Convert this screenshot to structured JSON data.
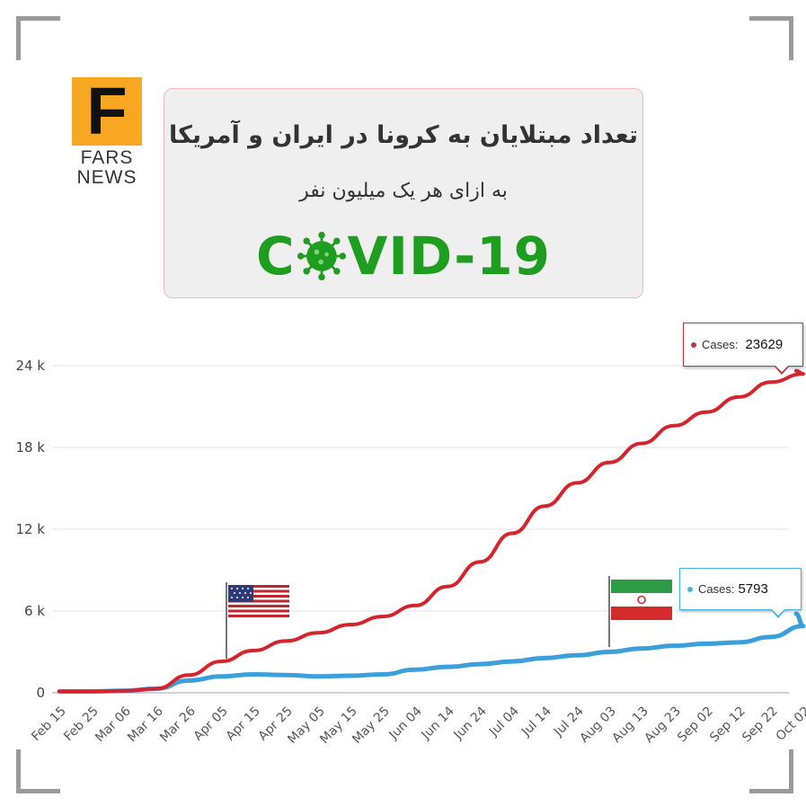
{
  "branding": {
    "logo_letter": "F",
    "logo_line1": "FARS",
    "logo_line2": "NEWS"
  },
  "header": {
    "title": "تعداد مبتلایان به کرونا در ایران و آمریکا",
    "subtitle": "به ازای هر یک میلیون نفر",
    "covid_left": "C",
    "covid_right": "VID-19"
  },
  "colors": {
    "us": "#d6242d",
    "iran": "#3b9fdc",
    "accent": "#1e9e1e",
    "logo_bg": "#f7a721"
  },
  "icons": {
    "covid": "virus-icon",
    "us_flag": "us-flag-icon",
    "iran_flag": "iran-flag-icon"
  },
  "tooltips": {
    "us": {
      "label": "Cases:",
      "value": "23629"
    },
    "iran": {
      "label": "Cases:",
      "value": "5793"
    }
  },
  "chart_data": {
    "type": "line",
    "y_tick_labels": [
      "0",
      "6 k",
      "12 k",
      "18 k",
      "24 k"
    ],
    "y_tick_values": [
      0,
      6000,
      12000,
      18000,
      24000
    ],
    "ylim": [
      0,
      24000
    ],
    "x_tick_labels": [
      "Feb 15",
      "Feb 25",
      "Mar 06",
      "Mar 16",
      "Mar 26",
      "Apr 05",
      "Apr 15",
      "Apr 25",
      "May 05",
      "May 15",
      "May 25",
      "Jun 04",
      "Jun 14",
      "Jun 24",
      "Jul 04",
      "Jul 14",
      "Jul 24",
      "Aug 03",
      "Aug 13",
      "Aug 23",
      "Sep 02",
      "Sep 12",
      "Sep 22",
      "Oct 02"
    ],
    "x": [
      "Feb 15",
      "Feb 25",
      "Mar 06",
      "Mar 16",
      "Mar 26",
      "Apr 05",
      "Apr 15",
      "Apr 25",
      "May 05",
      "May 15",
      "May 25",
      "Jun 04",
      "Jun 14",
      "Jun 24",
      "Jul 04",
      "Jul 14",
      "Jul 24",
      "Aug 03",
      "Aug 13",
      "Aug 23",
      "Sep 02",
      "Sep 12",
      "Sep 22",
      "Oct 02",
      "Oct 08"
    ],
    "series": [
      {
        "key": "us",
        "values": [
          100,
          100,
          150,
          300,
          1300,
          2300,
          3100,
          3800,
          4400,
          5000,
          5600,
          6400,
          7800,
          9600,
          11700,
          13700,
          15400,
          16900,
          18300,
          19600,
          20600,
          21700,
          22800,
          23400,
          23629
        ]
      },
      {
        "key": "iran",
        "values": [
          100,
          100,
          150,
          300,
          900,
          1200,
          1350,
          1300,
          1200,
          1250,
          1350,
          1700,
          1900,
          2100,
          2300,
          2550,
          2750,
          3000,
          3250,
          3450,
          3600,
          3700,
          4100,
          4900,
          5793
        ]
      }
    ],
    "grid": true,
    "legend": "none"
  }
}
